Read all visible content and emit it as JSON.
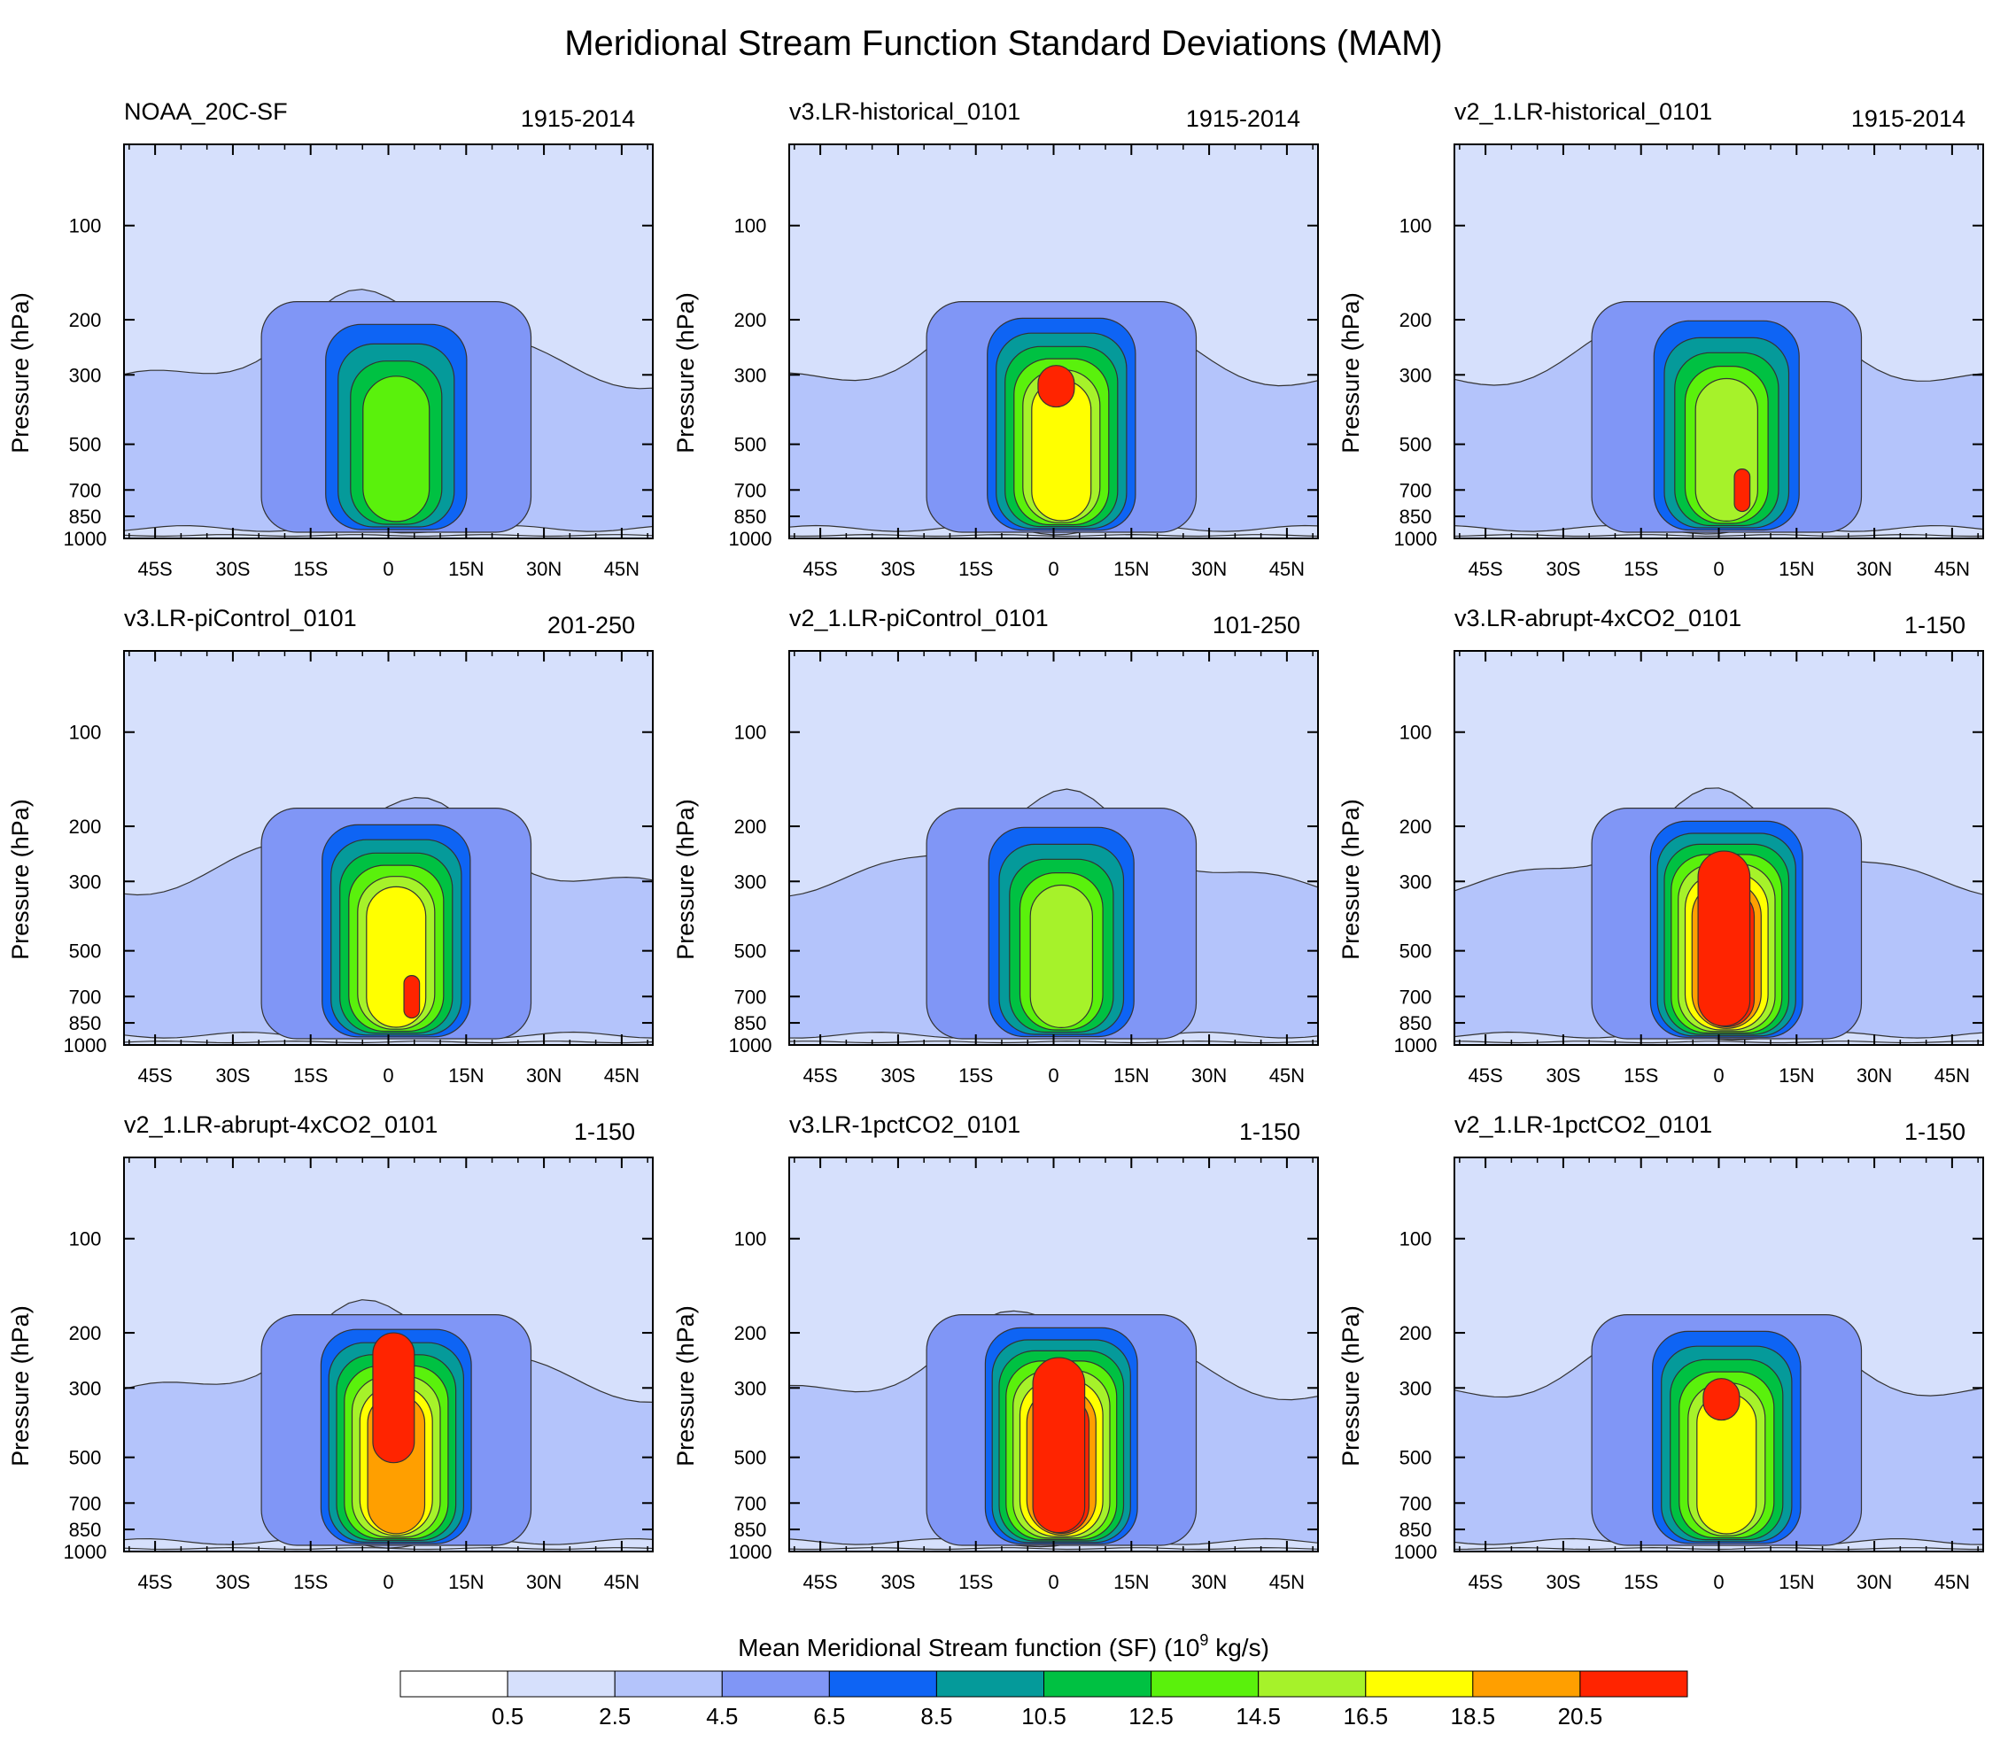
{
  "figure": {
    "title": "Meridional Stream Function Standard Deviations (MAM)"
  },
  "chart_data": [
    {
      "type": "heatmap",
      "title": "NOAA_20C-SF",
      "period": "1915-2014",
      "ylabel": "Pressure (hPa)",
      "core": "green",
      "red_core": false
    },
    {
      "type": "heatmap",
      "title": "v3.LR-historical_0101",
      "period": "1915-2014",
      "ylabel": "Pressure (hPa)",
      "core": "yellow",
      "red_core": "small-upper"
    },
    {
      "type": "heatmap",
      "title": "v2_1.LR-historical_0101",
      "period": "1915-2014",
      "ylabel": "Pressure (hPa)",
      "core": "lightgreen",
      "red_core": "small-lower"
    },
    {
      "type": "heatmap",
      "title": "v3.LR-piControl_0101",
      "period": "201-250",
      "ylabel": "Pressure (hPa)",
      "core": "yellow",
      "red_core": "small-lower"
    },
    {
      "type": "heatmap",
      "title": "v2_1.LR-piControl_0101",
      "period": "101-250",
      "ylabel": "Pressure (hPa)",
      "core": "lightgreen",
      "red_core": false
    },
    {
      "type": "heatmap",
      "title": "v3.LR-abrupt-4xCO2_0101",
      "period": "1-150",
      "ylabel": "Pressure (hPa)",
      "core": "red",
      "red_core": "large"
    },
    {
      "type": "heatmap",
      "title": "v2_1.LR-abrupt-4xCO2_0101",
      "period": "1-150",
      "ylabel": "Pressure (hPa)",
      "core": "orange",
      "red_core": "upper"
    },
    {
      "type": "heatmap",
      "title": "v3.LR-1pctCO2_0101",
      "period": "1-150",
      "ylabel": "Pressure (hPa)",
      "core": "red",
      "red_core": "large"
    },
    {
      "type": "heatmap",
      "title": "v2_1.LR-1pctCO2_0101",
      "period": "1-150",
      "ylabel": "Pressure (hPa)",
      "core": "yellow",
      "red_core": "small-upper"
    }
  ],
  "axes": {
    "x_ticks": [
      "45S",
      "30S",
      "15S",
      "0",
      "15N",
      "30N",
      "45N"
    ],
    "x_values": [
      -45,
      -30,
      -15,
      0,
      15,
      30,
      45
    ],
    "xlim": [
      -51,
      51
    ],
    "y_ticks": [
      "100",
      "200",
      "300",
      "500",
      "700",
      "850",
      "1000"
    ],
    "y_values": [
      100,
      200,
      300,
      500,
      700,
      850,
      1000
    ]
  },
  "colorbar": {
    "title_main": "Mean Meridional Stream function (SF) (10",
    "title_sup": "9",
    "title_unit": " kg/s)",
    "labels": [
      "0.5",
      "2.5",
      "4.5",
      "6.5",
      "8.5",
      "10.5",
      "12.5",
      "14.5",
      "16.5",
      "18.5",
      "20.5"
    ],
    "colors": [
      "#ffffff",
      "#d6e0fc",
      "#b4c4fb",
      "#8096f6",
      "#0e64f4",
      "#059a9a",
      "#00c142",
      "#5af10c",
      "#a6f22a",
      "#ffff00",
      "#ff9f00",
      "#ff2400"
    ]
  }
}
